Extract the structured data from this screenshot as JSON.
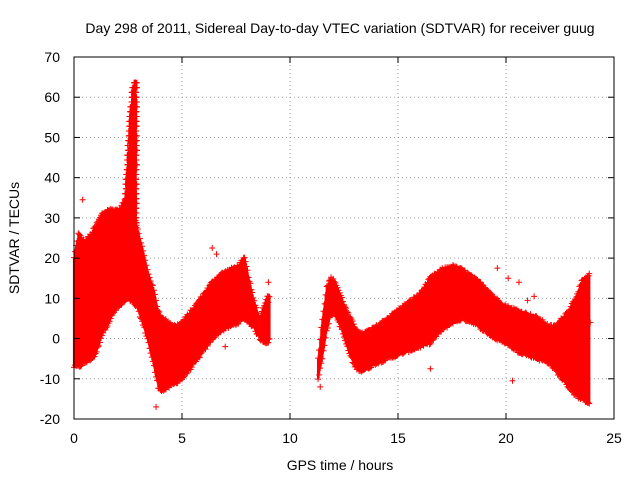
{
  "chart_data": {
    "type": "scatter",
    "title": "Day 298 of 2011, Sidereal Day-to-day VTEC variation (SDTVAR) for receiver guug",
    "xlabel": "GPS time / hours",
    "ylabel": "SDTVAR / TECUs",
    "xlim": [
      0,
      25
    ],
    "ylim": [
      -20,
      70
    ],
    "xticks": [
      0,
      5,
      10,
      15,
      20,
      25
    ],
    "yticks": [
      -20,
      -10,
      0,
      10,
      20,
      30,
      40,
      50,
      60,
      70
    ],
    "grid": true,
    "marker": "+",
    "color": "#ff0000",
    "series": [
      {
        "name": "SDTVAR",
        "band": [
          [
            0.0,
            -7,
            20
          ],
          [
            0.2,
            -7,
            26
          ],
          [
            0.5,
            -6,
            24
          ],
          [
            0.8,
            -5,
            26
          ],
          [
            1.0,
            -4,
            28
          ],
          [
            1.3,
            1,
            31
          ],
          [
            1.6,
            4,
            32
          ],
          [
            1.9,
            7,
            32
          ],
          [
            2.1,
            8,
            32
          ],
          [
            2.3,
            9,
            34
          ],
          [
            2.5,
            10,
            35
          ],
          [
            2.7,
            9,
            35
          ],
          [
            2.9,
            8,
            28
          ],
          [
            3.1,
            5,
            24
          ],
          [
            3.4,
            0,
            17
          ],
          [
            3.7,
            -7,
            12
          ],
          [
            3.9,
            -12,
            7
          ],
          [
            4.1,
            -13,
            5
          ],
          [
            4.4,
            -12,
            4
          ],
          [
            4.7,
            -11,
            3
          ],
          [
            5.0,
            -10,
            4
          ],
          [
            5.3,
            -8,
            6
          ],
          [
            5.6,
            -6,
            8
          ],
          [
            6.0,
            -3,
            11
          ],
          [
            6.4,
            0,
            14
          ],
          [
            6.8,
            2,
            16
          ],
          [
            7.2,
            3,
            17
          ],
          [
            7.6,
            4,
            18
          ],
          [
            7.9,
            5,
            20
          ],
          [
            8.3,
            3,
            10
          ],
          [
            8.6,
            0,
            5
          ],
          [
            8.9,
            -1,
            10
          ],
          [
            9.1,
            0,
            11
          ]
        ],
        "band2": [
          [
            11.3,
            -10,
            -5
          ],
          [
            11.5,
            -5,
            5
          ],
          [
            11.7,
            2,
            13
          ],
          [
            11.9,
            6,
            15
          ],
          [
            12.1,
            6,
            14
          ],
          [
            12.4,
            2,
            10
          ],
          [
            12.7,
            -3,
            6
          ],
          [
            13.0,
            -7,
            3
          ],
          [
            13.3,
            -8,
            1
          ],
          [
            13.7,
            -7,
            2
          ],
          [
            14.0,
            -6,
            3
          ],
          [
            14.5,
            -5,
            5
          ],
          [
            15.0,
            -4,
            7
          ],
          [
            15.5,
            -3,
            9
          ],
          [
            16.0,
            -2,
            11
          ],
          [
            16.5,
            -1,
            15
          ],
          [
            17.0,
            2,
            17
          ],
          [
            17.5,
            4,
            18
          ],
          [
            18.0,
            5,
            17
          ],
          [
            18.5,
            4,
            15
          ],
          [
            19.0,
            2,
            13
          ],
          [
            19.5,
            0,
            10
          ],
          [
            20.0,
            -1,
            8
          ],
          [
            20.5,
            -3,
            7
          ],
          [
            21.0,
            -4,
            6
          ],
          [
            21.5,
            -5,
            5
          ],
          [
            22.0,
            -6,
            3
          ],
          [
            22.3,
            -8,
            3
          ],
          [
            22.6,
            -10,
            5
          ],
          [
            22.9,
            -12,
            7
          ],
          [
            23.2,
            -14,
            10
          ],
          [
            23.5,
            -15,
            14
          ],
          [
            23.9,
            -16,
            16
          ]
        ],
        "spike": [
          [
            2.2,
            20
          ],
          [
            2.3,
            28
          ],
          [
            2.4,
            38
          ],
          [
            2.5,
            48
          ],
          [
            2.6,
            56
          ],
          [
            2.7,
            62
          ],
          [
            2.8,
            64
          ],
          [
            2.9,
            64
          ]
        ],
        "outliers": [
          [
            0.4,
            34.5
          ],
          [
            3.8,
            -17
          ],
          [
            6.4,
            22.5
          ],
          [
            6.6,
            21
          ],
          [
            7.0,
            -2
          ],
          [
            9.0,
            9
          ],
          [
            9.0,
            14
          ],
          [
            9.0,
            -1
          ],
          [
            11.4,
            -12
          ],
          [
            16.5,
            -7.5
          ],
          [
            19.6,
            17.5
          ],
          [
            20.1,
            15
          ],
          [
            20.3,
            -10.5
          ],
          [
            20.6,
            14
          ],
          [
            21.0,
            9.5
          ],
          [
            21.3,
            10.5
          ],
          [
            22.3,
            3
          ],
          [
            23.2,
            4
          ],
          [
            23.9,
            4
          ]
        ]
      }
    ]
  }
}
